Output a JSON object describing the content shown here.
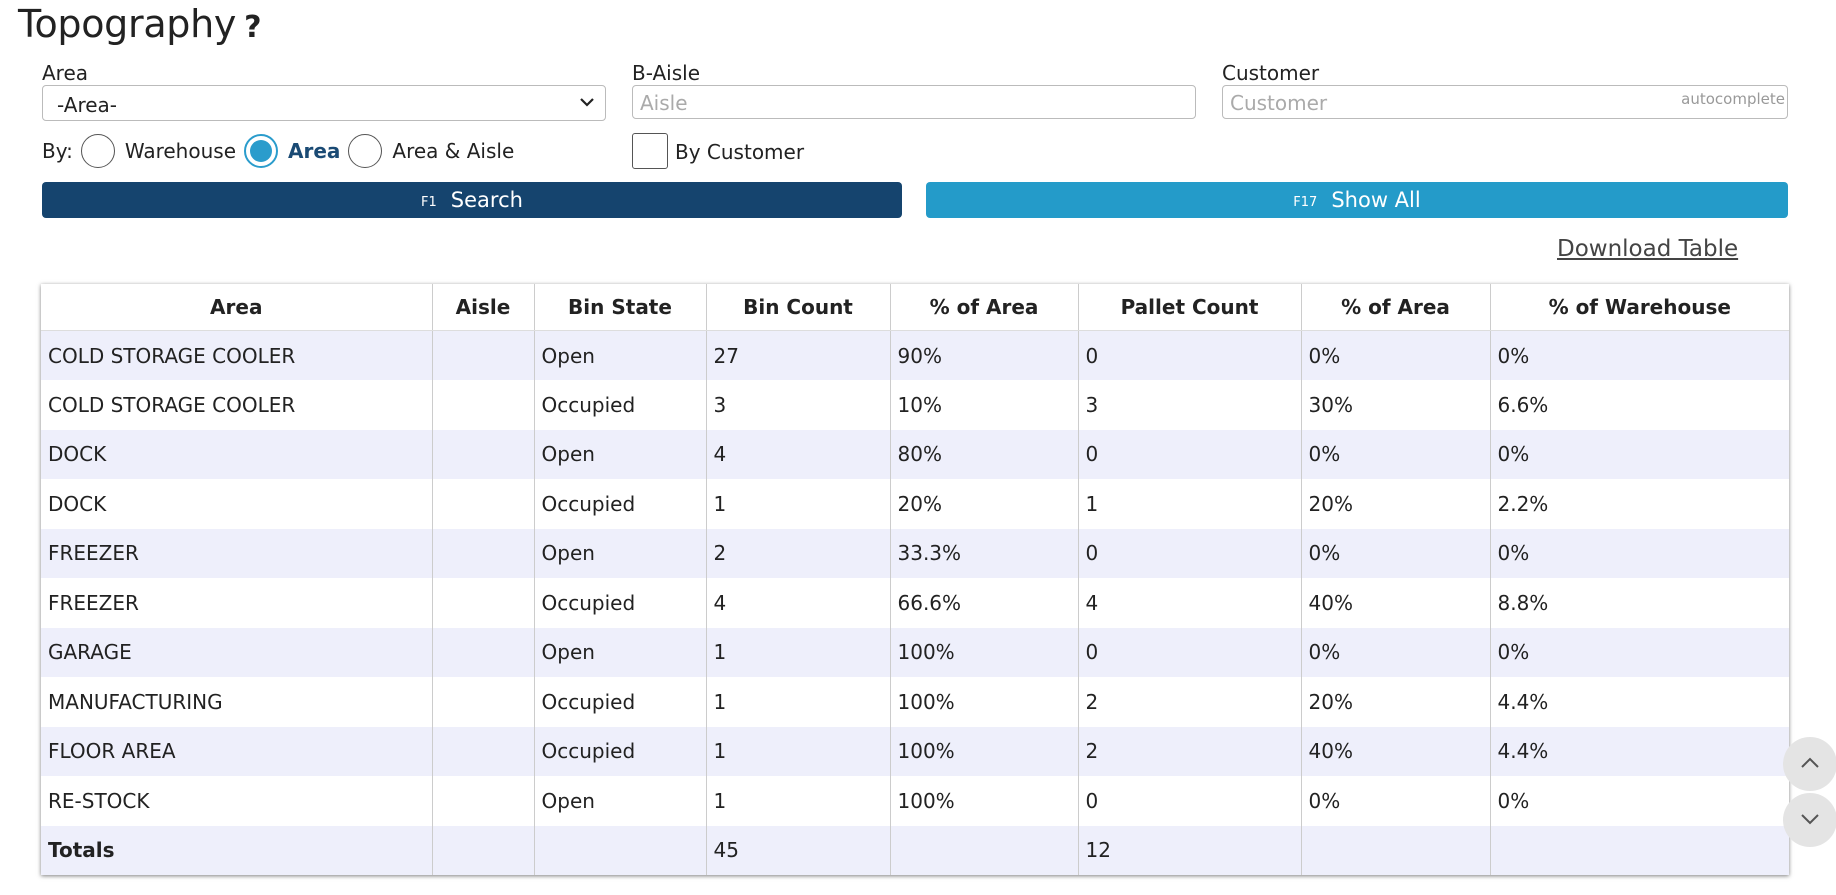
{
  "page": {
    "title": "Topography",
    "help_icon": "?"
  },
  "filters": {
    "area_label": "Area",
    "area_selected": "-Area-",
    "aisle_label": "B-Aisle",
    "aisle_placeholder": "Aisle",
    "customer_label": "Customer",
    "customer_placeholder": "Customer",
    "customer_hint": "autocomplete",
    "by_label": "By:",
    "by_options": [
      {
        "label": "Warehouse",
        "selected": false
      },
      {
        "label": "Area",
        "selected": true
      },
      {
        "label": "Area & Aisle",
        "selected": false
      }
    ],
    "by_customer_label": "By Customer",
    "by_customer_checked": false
  },
  "buttons": {
    "search_key": "F1",
    "search_label": "Search",
    "show_all_key": "F17",
    "show_all_label": "Show All",
    "download_label": "Download Table"
  },
  "colors": {
    "primary": "#15446e",
    "accent": "#249bc9",
    "row_stripe": "#eeeffb"
  },
  "table": {
    "headers": [
      "Area",
      "Aisle",
      "Bin State",
      "Bin Count",
      "% of Area",
      "Pallet Count",
      "% of Area",
      "% of Warehouse"
    ],
    "rows": [
      [
        "COLD STORAGE COOLER",
        "",
        "Open",
        "27",
        "90%",
        "0",
        "0%",
        "0%"
      ],
      [
        "COLD STORAGE COOLER",
        "",
        "Occupied",
        "3",
        "10%",
        "3",
        "30%",
        "6.6%"
      ],
      [
        "DOCK",
        "",
        "Open",
        "4",
        "80%",
        "0",
        "0%",
        "0%"
      ],
      [
        "DOCK",
        "",
        "Occupied",
        "1",
        "20%",
        "1",
        "20%",
        "2.2%"
      ],
      [
        "FREEZER",
        "",
        "Open",
        "2",
        "33.3%",
        "0",
        "0%",
        "0%"
      ],
      [
        "FREEZER",
        "",
        "Occupied",
        "4",
        "66.6%",
        "4",
        "40%",
        "8.8%"
      ],
      [
        "GARAGE",
        "",
        "Open",
        "1",
        "100%",
        "0",
        "0%",
        "0%"
      ],
      [
        "MANUFACTURING",
        "",
        "Occupied",
        "1",
        "100%",
        "2",
        "20%",
        "4.4%"
      ],
      [
        "FLOOR AREA",
        "",
        "Occupied",
        "1",
        "100%",
        "2",
        "40%",
        "4.4%"
      ],
      [
        "RE-STOCK",
        "",
        "Open",
        "1",
        "100%",
        "0",
        "0%",
        "0%"
      ]
    ],
    "totals": [
      "Totals",
      "",
      "",
      "45",
      "",
      "12",
      "",
      ""
    ]
  },
  "scroll": {
    "up_icon": "chevron-up-icon",
    "down_icon": "chevron-down-icon"
  }
}
